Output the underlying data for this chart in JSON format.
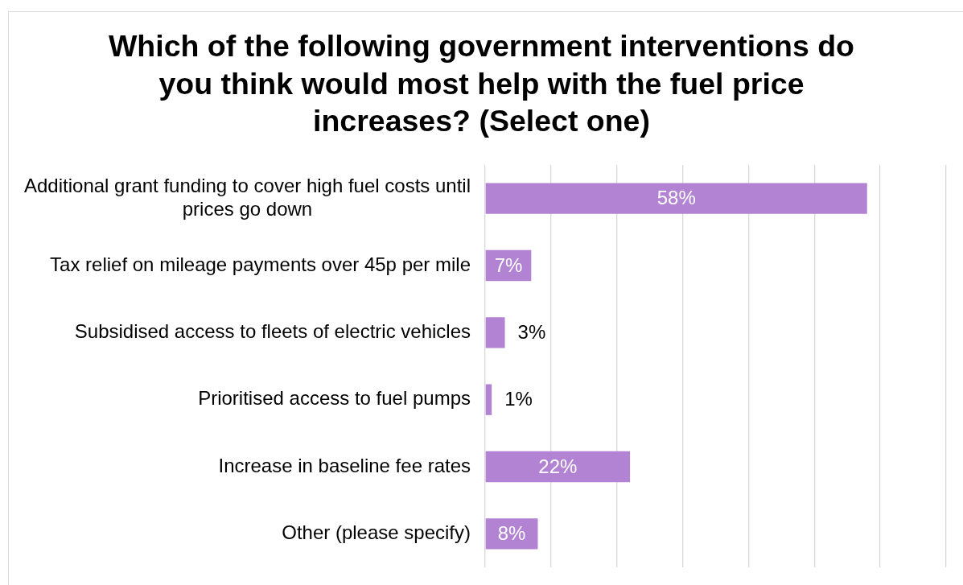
{
  "chart_data": {
    "type": "bar",
    "orientation": "horizontal",
    "title": "Which of the following government interventions do you think would most help with the fuel price increases? (Select one)",
    "categories": [
      "Additional grant funding to cover high fuel costs until prices go down",
      "Tax relief on mileage payments over 45p per mile",
      "Subsidised access to fleets of electric vehicles",
      "Prioritised access to fuel pumps",
      "Increase in baseline fee rates",
      "Other (please specify)"
    ],
    "values": [
      58,
      7,
      3,
      1,
      22,
      8
    ],
    "value_labels": [
      "58%",
      "7%",
      "3%",
      "1%",
      "22%",
      "8%"
    ],
    "color": "#b383d3",
    "xlim": [
      0,
      70
    ],
    "xticks": [
      {
        "value": 0,
        "label": null
      },
      {
        "value": 10,
        "label": null
      },
      {
        "value": 20,
        "label": null
      },
      {
        "value": 30,
        "label": null
      },
      {
        "value": 40,
        "label": null
      },
      {
        "value": 50,
        "label": null
      },
      {
        "value": 60,
        "label": null
      },
      {
        "value": 70,
        "label": null
      }
    ],
    "grid": "x",
    "tick_labels": "y"
  }
}
